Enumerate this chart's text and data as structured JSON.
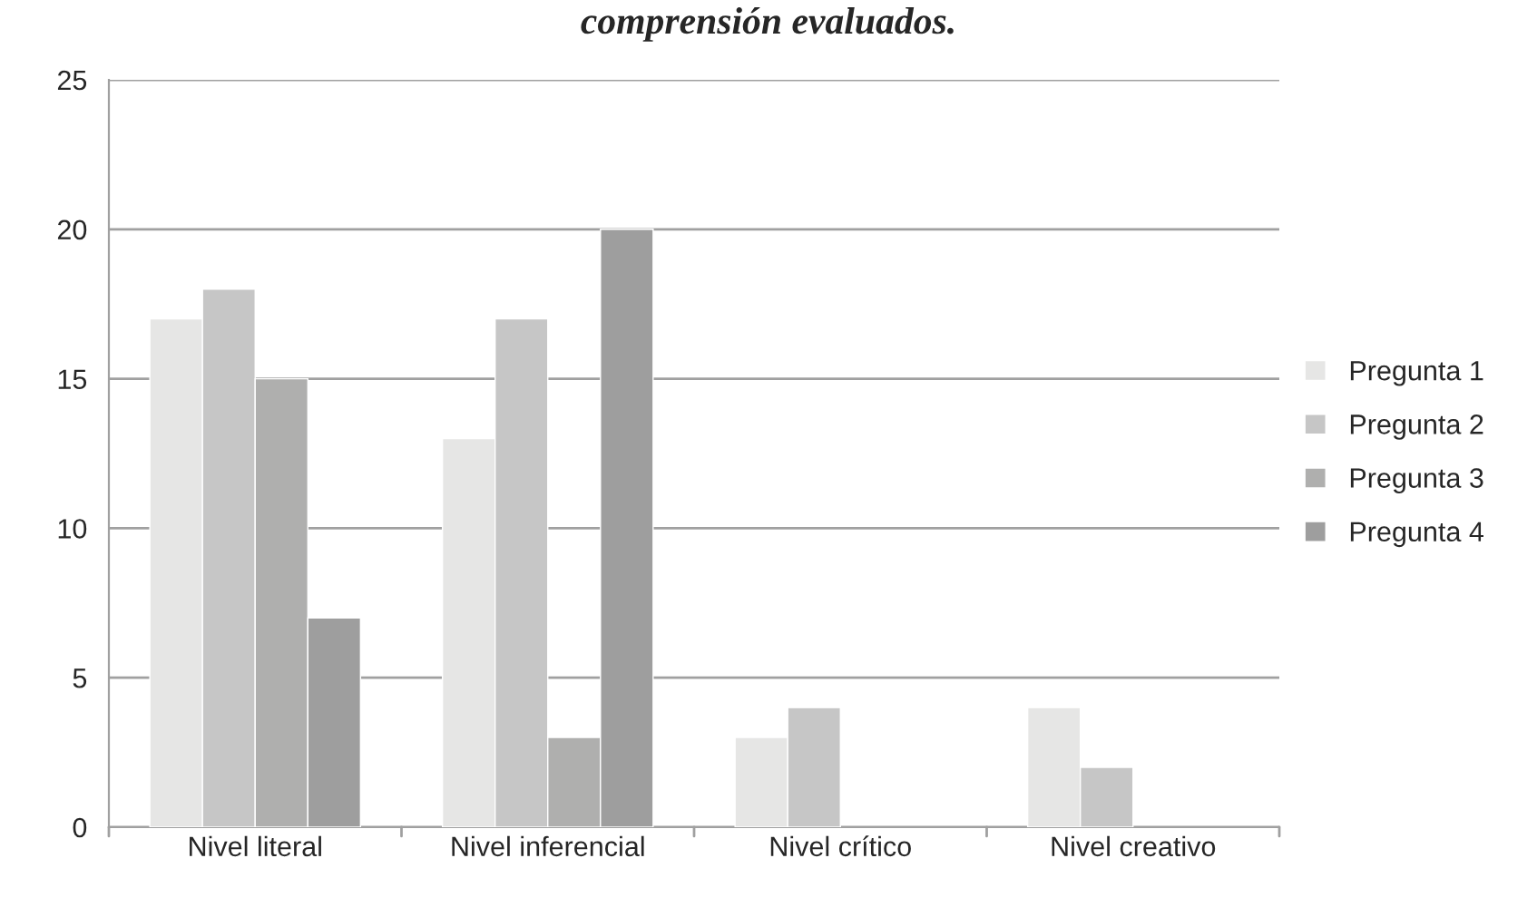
{
  "chart_data": {
    "type": "bar",
    "title": "comprensión evaluados.",
    "categories": [
      "Nivel literal",
      "Nivel inferencial",
      "Nivel crítico",
      "Nivel creativo"
    ],
    "series": [
      {
        "name": "Pregunta 1",
        "color": "#e6e6e5",
        "values": [
          17,
          13,
          3,
          4
        ]
      },
      {
        "name": "Pregunta 2",
        "color": "#c6c6c6",
        "values": [
          18,
          17,
          4,
          2
        ]
      },
      {
        "name": "Pregunta 3",
        "color": "#afafae",
        "values": [
          15,
          3,
          null,
          null
        ]
      },
      {
        "name": "Pregunta 4",
        "color": "#9e9e9e",
        "values": [
          7,
          20,
          null,
          null
        ]
      }
    ],
    "ylim": [
      0,
      25
    ],
    "yticks": [
      0,
      5,
      10,
      15,
      20,
      25
    ],
    "grid": "y",
    "legend": "right"
  }
}
